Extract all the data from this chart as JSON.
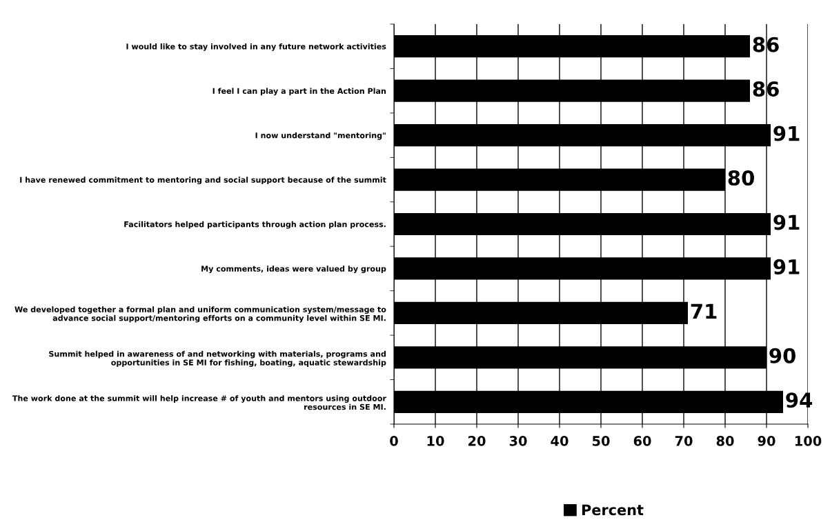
{
  "chart_data": {
    "type": "bar",
    "orientation": "horizontal",
    "categories": [
      "I would like to stay involved in any future network activities",
      "I feel I can play a part in the Action Plan",
      "I now understand \"mentoring\"",
      "I have renewed commitment to mentoring and social support because of the summit",
      "Facilitators helped participants through action plan process.",
      "My comments, ideas were valued by group",
      "We developed together a formal plan and uniform communication system/message to advance social support/mentoring efforts on a community level within SE MI.",
      "Summit helped in awareness of and networking with materials, programs and opportunities in SE MI for fishing, boating, aquatic stewardship",
      "The work done at the summit will help increase # of youth and mentors using outdoor resources in SE MI."
    ],
    "series": [
      {
        "name": "Percent",
        "color": "#000000",
        "values": [
          86,
          86,
          91,
          80,
          91,
          91,
          71,
          90,
          94
        ]
      }
    ],
    "xlim": [
      0,
      100
    ],
    "xticks": [
      0,
      10,
      20,
      30,
      40,
      50,
      60,
      70,
      80,
      90,
      100
    ],
    "grid": "x",
    "legend": "bottom",
    "data_labels": true
  }
}
